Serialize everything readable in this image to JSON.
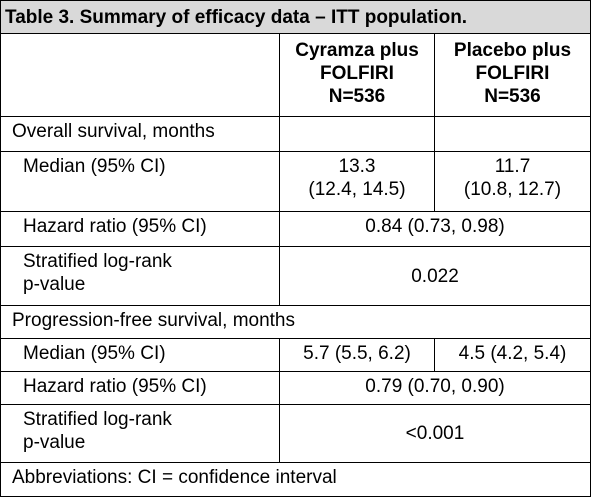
{
  "table": {
    "title": "Table 3. Summary of efficacy data – ITT population.",
    "col1_header": [
      "Cyramza plus",
      "FOLFIRI",
      "N=536"
    ],
    "col2_header": [
      "Placebo plus",
      "FOLFIRI",
      "N=536"
    ],
    "os_section": "Overall survival, months",
    "os_median_label": "Median (95% CI)",
    "os_median_col1": [
      "13.3",
      "(12.4, 14.5)"
    ],
    "os_median_col2": [
      "11.7",
      "(10.8, 12.7)"
    ],
    "os_hr_label": "Hazard ratio (95% CI)",
    "os_hr_value": "0.84 (0.73, 0.98)",
    "os_logrank_label": [
      "Stratified log-rank",
      "p-value"
    ],
    "os_logrank_value": "0.022",
    "pfs_section": "Progression-free survival, months",
    "pfs_median_label": "Median (95% CI)",
    "pfs_median_col1": "5.7 (5.5, 6.2)",
    "pfs_median_col2": "4.5 (4.2, 5.4)",
    "pfs_hr_label": "Hazard ratio (95% CI)",
    "pfs_hr_value": "0.79 (0.70, 0.90)",
    "pfs_logrank_label": [
      "Stratified log-rank",
      "p-value"
    ],
    "pfs_logrank_value": "<0.001",
    "footnote": "Abbreviations: CI = confidence interval"
  }
}
